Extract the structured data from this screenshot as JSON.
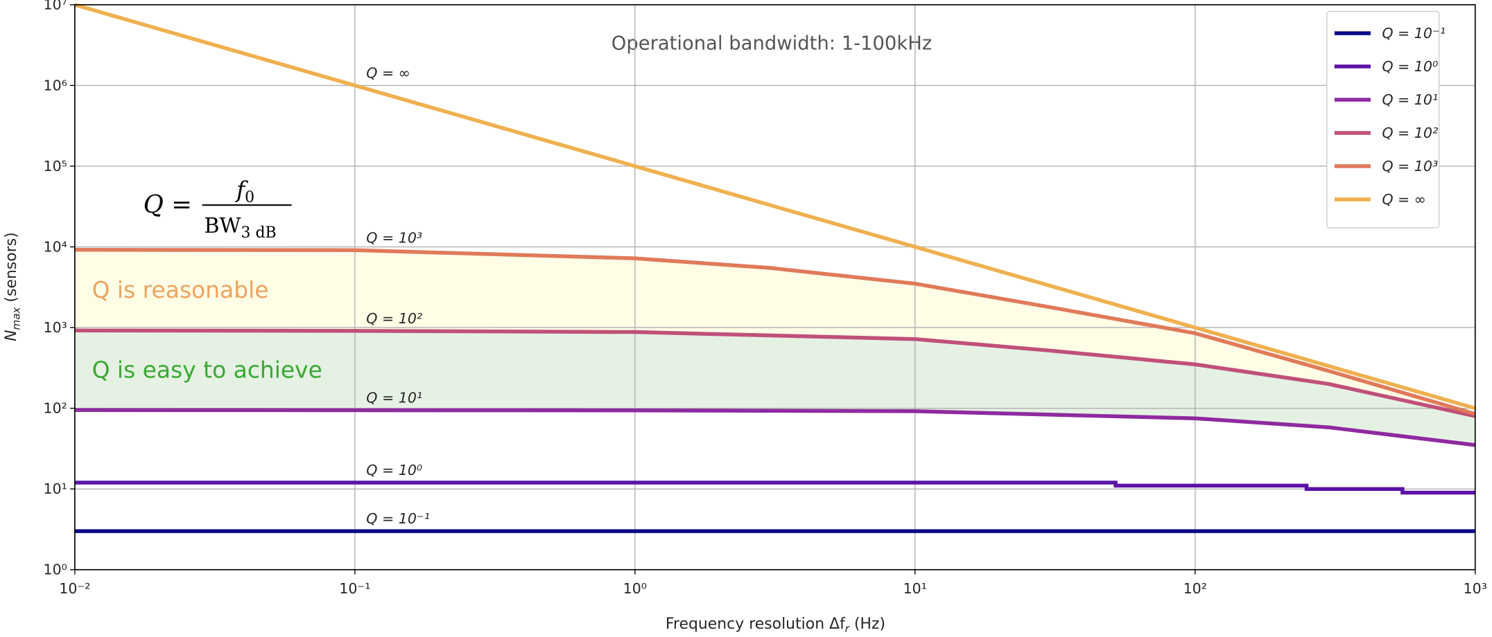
{
  "chart_data": {
    "type": "line",
    "title": "Operational bandwidth: 1-100kHz",
    "x_label": "Frequency resolution Δf",
    "x_label_sub": "r",
    "x_label_tail": " (Hz)",
    "y_label": "N",
    "y_label_sub": "max",
    "y_label_tail": " (sensors)",
    "log_x": true,
    "log_y": true,
    "grid": true,
    "legend": "upper right",
    "xlim": [
      0.01,
      1000
    ],
    "ylim": [
      1,
      10000000
    ],
    "xticks": [
      {
        "value": 0.01,
        "label": "10⁻²"
      },
      {
        "value": 0.1,
        "label": "10⁻¹"
      },
      {
        "value": 1,
        "label": "10⁰"
      },
      {
        "value": 10,
        "label": "10¹"
      },
      {
        "value": 100,
        "label": "10²"
      },
      {
        "value": 1000,
        "label": "10³"
      }
    ],
    "yticks": [
      {
        "value": 1,
        "label": "10⁰"
      },
      {
        "value": 10,
        "label": "10¹"
      },
      {
        "value": 100,
        "label": "10²"
      },
      {
        "value": 1000,
        "label": "10³"
      },
      {
        "value": 10000,
        "label": "10⁴"
      },
      {
        "value": 100000,
        "label": "10⁵"
      },
      {
        "value": 1000000,
        "label": "10⁶"
      },
      {
        "value": 10000000,
        "label": "10⁷"
      }
    ],
    "series": [
      {
        "name": "Q = 10⁻¹",
        "color": "#0d0887",
        "x": [
          0.01,
          1000
        ],
        "values": [
          3,
          3
        ]
      },
      {
        "name": "Q = 10⁰",
        "color": "#5c13a6",
        "x": [
          0.01,
          52,
          52,
          250,
          250,
          550,
          550,
          1000
        ],
        "values": [
          12,
          12,
          11,
          11,
          10,
          10,
          9,
          9
        ]
      },
      {
        "name": "Q = 10¹",
        "color": "#8e2aa0",
        "x": [
          0.01,
          1,
          10,
          100,
          300,
          1000
        ],
        "values": [
          95,
          94,
          92,
          75,
          58,
          35
        ]
      },
      {
        "name": "Q = 10²",
        "color": "#c0507a",
        "x": [
          0.01,
          0.1,
          1,
          10,
          30,
          100,
          300,
          1000
        ],
        "values": [
          920,
          910,
          880,
          720,
          520,
          350,
          200,
          80
        ]
      },
      {
        "name": "Q = 10³",
        "color": "#e07a5a",
        "x": [
          0.01,
          0.1,
          1,
          3,
          10,
          30,
          100,
          300,
          1000
        ],
        "values": [
          9200,
          9100,
          7200,
          5500,
          3500,
          1800,
          850,
          290,
          85
        ]
      },
      {
        "name": "Q = ∞",
        "color": "#f0b050",
        "x": [
          0.01,
          0.1,
          1,
          10,
          100,
          1000
        ],
        "values": [
          10000000,
          1000000,
          100000,
          10000,
          1000,
          100
        ]
      }
    ],
    "fills": [
      {
        "upper": 4,
        "lower": 3,
        "color": "#fffde6",
        "label": "Q is reasonable",
        "label_color": "#eda35e"
      },
      {
        "upper": 3,
        "lower": 2,
        "color": "#e5f1e3",
        "label": "Q is easy to achieve",
        "label_color": "#3aa832"
      }
    ],
    "formula": {
      "lhs": "Q =",
      "numerator": "f",
      "numerator_sub": "0",
      "denominator": "BW",
      "denominator_sub": "3 dB"
    }
  }
}
